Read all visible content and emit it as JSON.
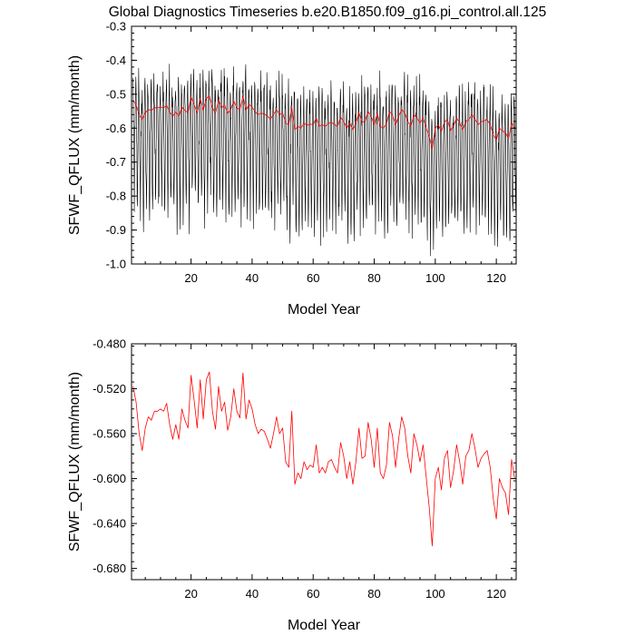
{
  "title": "Global Diagnostics Timeseries b.e20.B1850.f09_g16.pi_control.all.125",
  "chart_data": [
    {
      "type": "line",
      "xlabel": "Model Year",
      "ylabel": "SFWF_QFLUX (mm/month)",
      "xlim": [
        0.5,
        126.5
      ],
      "ylim": [
        -1.0,
        -0.3
      ],
      "xticks": [
        20,
        40,
        60,
        80,
        100,
        120
      ],
      "xtick_labels": [
        "20",
        "40",
        "60",
        "80",
        "100",
        "120"
      ],
      "yticks": [
        -1.0,
        -0.9,
        -0.8,
        -0.7,
        -0.6,
        -0.5,
        -0.4,
        -0.3
      ],
      "ytick_labels": [
        "-1.0",
        "-0.9",
        "-0.8",
        "-0.7",
        "-0.6",
        "-0.5",
        "-0.4",
        "-0.3"
      ],
      "series": [
        {
          "type": "monthly",
          "color": "#000000",
          "x_start": 1,
          "step": 0.0833333,
          "seed": 12345,
          "monthly_amplitude": [
            0.05,
            -0.03,
            -0.1,
            -0.17,
            -0.25,
            -0.3,
            -0.22,
            -0.12,
            -0.04,
            0.02,
            0.06,
            0.07
          ],
          "noise": 0.05
        },
        {
          "type": "annual",
          "color": "#ff0000",
          "ref": "annual_mean"
        }
      ]
    },
    {
      "type": "line",
      "xlabel": "Model Year",
      "ylabel": "SFWF_QFLUX (mm/month)",
      "xlim": [
        0.5,
        126.5
      ],
      "ylim": [
        -0.69,
        -0.48
      ],
      "xticks": [
        20,
        40,
        60,
        80,
        100,
        120
      ],
      "xtick_labels": [
        "20",
        "40",
        "60",
        "80",
        "100",
        "120"
      ],
      "yticks": [
        -0.68,
        -0.64,
        -0.6,
        -0.56,
        -0.52,
        -0.48
      ],
      "ytick_labels": [
        "-0.680",
        "-0.640",
        "-0.600",
        "-0.560",
        "-0.520",
        "-0.480"
      ],
      "series": [
        {
          "type": "annual",
          "color": "#ff0000",
          "ref": "annual_mean"
        }
      ]
    }
  ],
  "annual_mean": {
    "x_start": 1,
    "values": [
      -0.518,
      -0.532,
      -0.56,
      -0.575,
      -0.555,
      -0.545,
      -0.548,
      -0.54,
      -0.54,
      -0.538,
      -0.54,
      -0.533,
      -0.552,
      -0.565,
      -0.552,
      -0.565,
      -0.538,
      -0.548,
      -0.555,
      -0.508,
      -0.53,
      -0.555,
      -0.512,
      -0.547,
      -0.512,
      -0.505,
      -0.54,
      -0.556,
      -0.518,
      -0.54,
      -0.532,
      -0.557,
      -0.545,
      -0.52,
      -0.54,
      -0.546,
      -0.506,
      -0.547,
      -0.53,
      -0.538,
      -0.552,
      -0.56,
      -0.556,
      -0.558,
      -0.565,
      -0.573,
      -0.56,
      -0.545,
      -0.56,
      -0.555,
      -0.585,
      -0.59,
      -0.54,
      -0.605,
      -0.595,
      -0.6,
      -0.585,
      -0.592,
      -0.588,
      -0.59,
      -0.57,
      -0.595,
      -0.59,
      -0.595,
      -0.585,
      -0.583,
      -0.59,
      -0.595,
      -0.568,
      -0.58,
      -0.6,
      -0.585,
      -0.605,
      -0.585,
      -0.555,
      -0.582,
      -0.58,
      -0.55,
      -0.565,
      -0.59,
      -0.555,
      -0.595,
      -0.6,
      -0.588,
      -0.55,
      -0.562,
      -0.59,
      -0.565,
      -0.545,
      -0.555,
      -0.58,
      -0.595,
      -0.56,
      -0.57,
      -0.585,
      -0.57,
      -0.598,
      -0.625,
      -0.66,
      -0.6,
      -0.59,
      -0.61,
      -0.582,
      -0.575,
      -0.608,
      -0.593,
      -0.57,
      -0.585,
      -0.605,
      -0.58,
      -0.575,
      -0.56,
      -0.573,
      -0.59,
      -0.582,
      -0.578,
      -0.575,
      -0.59,
      -0.618,
      -0.636,
      -0.6,
      -0.608,
      -0.613,
      -0.632,
      -0.583,
      -0.6
    ]
  }
}
